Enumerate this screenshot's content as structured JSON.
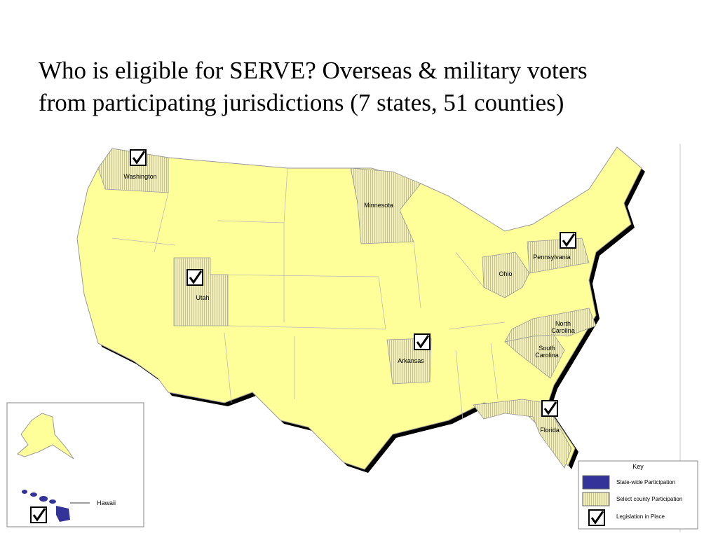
{
  "title_lines": [
    "Who is eligible for SERVE?  Overseas & military voters",
    "from participating jurisdictions (7 states, 51 counties)"
  ],
  "map": {
    "state_labels": [
      "Washington",
      "Minnesota",
      "Utah",
      "Pennsylvania",
      "Ohio",
      "North Carolina",
      "South Carolina",
      "Arkansas",
      "Florida"
    ],
    "inset_label": "Hawaii"
  },
  "key": {
    "title": "Key",
    "items": [
      "State-wide Participation",
      "Select county Participation",
      "Legislation in Place"
    ]
  }
}
